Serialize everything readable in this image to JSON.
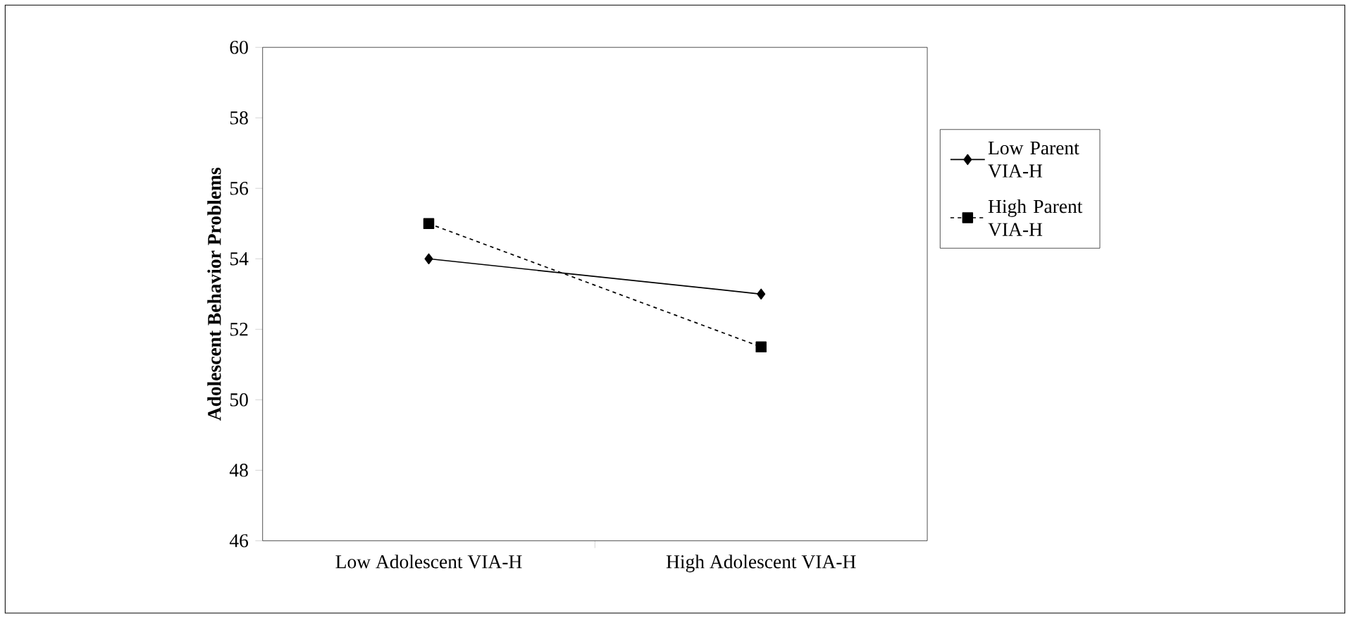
{
  "chart_data": {
    "type": "line",
    "ylabel": "Adolescent Behavior Problems",
    "categories": [
      "Low Adolescent VIA-H",
      "High Adolescent VIA-H"
    ],
    "ylim": [
      46,
      60
    ],
    "yticks": [
      46,
      48,
      50,
      52,
      54,
      56,
      58,
      60
    ],
    "legend": "right",
    "grid": false,
    "series": [
      {
        "name": "Low Parent VIA-H",
        "color": "#000000",
        "values": [
          54,
          53
        ],
        "marker": "diamond",
        "line_style": "solid"
      },
      {
        "name": "High Parent VIA-H",
        "color": "#000000",
        "values": [
          55,
          51.5
        ],
        "marker": "square",
        "line_style": "dashed"
      }
    ]
  }
}
